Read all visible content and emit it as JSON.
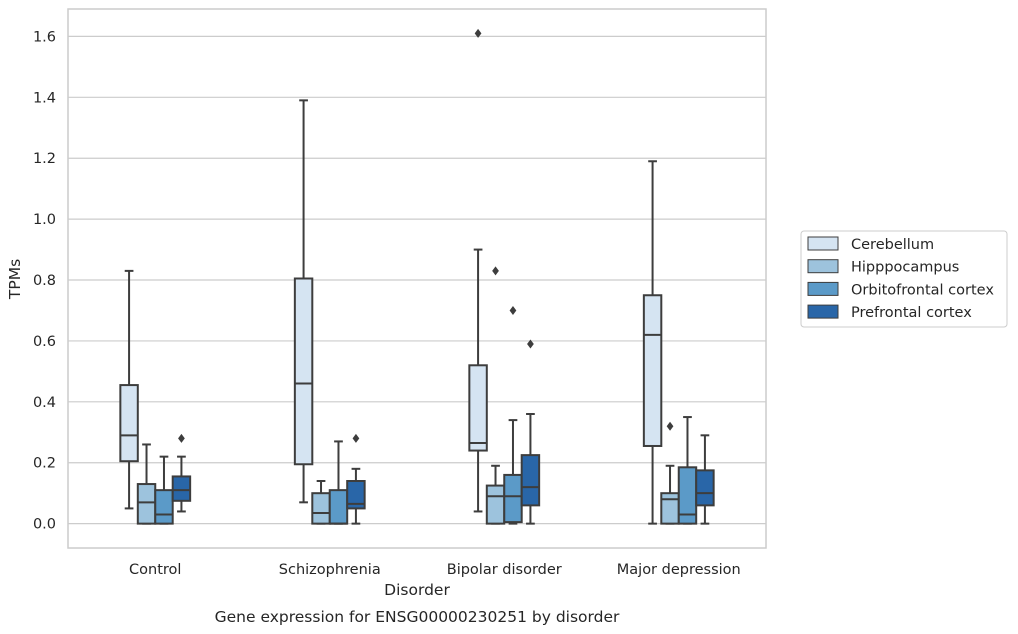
{
  "chart_data": {
    "type": "box",
    "title": "",
    "caption": "Gene expression for ENSG00000230251 by disorder",
    "xlabel": "Disorder",
    "ylabel": "TPMs",
    "ylim": [
      -0.08,
      1.69
    ],
    "yticks": [
      0.0,
      0.2,
      0.4,
      0.6,
      0.8,
      1.0,
      1.2,
      1.4,
      1.6
    ],
    "ytick_labels": [
      "0.0",
      "0.2",
      "0.4",
      "0.6",
      "0.8",
      "1.0",
      "1.2",
      "1.4",
      "1.6"
    ],
    "grid": "horizontal",
    "legend_position": "right",
    "categories": [
      "Control",
      "Schizophrenia",
      "Bipolar disorder",
      "Major depression"
    ],
    "series": [
      {
        "name": "Cerebellum",
        "color": "#d5e4f2",
        "boxes": [
          {
            "whisker_low": 0.05,
            "q1": 0.205,
            "median": 0.29,
            "q3": 0.455,
            "whisker_high": 0.83,
            "outliers": []
          },
          {
            "whisker_low": 0.07,
            "q1": 0.195,
            "median": 0.46,
            "q3": 0.805,
            "whisker_high": 1.39,
            "outliers": []
          },
          {
            "whisker_low": 0.04,
            "q1": 0.24,
            "median": 0.265,
            "q3": 0.52,
            "whisker_high": 0.9,
            "outliers": [
              1.61
            ]
          },
          {
            "whisker_low": 0.0,
            "q1": 0.255,
            "median": 0.62,
            "q3": 0.75,
            "whisker_high": 1.19,
            "outliers": []
          }
        ]
      },
      {
        "name": "Hipppocampus",
        "color": "#9dc3dd",
        "boxes": [
          {
            "whisker_low": 0.0,
            "q1": 0.0,
            "median": 0.07,
            "q3": 0.13,
            "whisker_high": 0.26,
            "outliers": []
          },
          {
            "whisker_low": 0.0,
            "q1": 0.0,
            "median": 0.035,
            "q3": 0.1,
            "whisker_high": 0.14,
            "outliers": []
          },
          {
            "whisker_low": 0.0,
            "q1": 0.0,
            "median": 0.09,
            "q3": 0.125,
            "whisker_high": 0.19,
            "outliers": [
              0.83
            ]
          },
          {
            "whisker_low": 0.0,
            "q1": 0.0,
            "median": 0.08,
            "q3": 0.1,
            "whisker_high": 0.19,
            "outliers": [
              0.32
            ]
          }
        ]
      },
      {
        "name": "Orbitofrontal cortex",
        "color": "#5b9ac8",
        "boxes": [
          {
            "whisker_low": 0.0,
            "q1": 0.0,
            "median": 0.03,
            "q3": 0.11,
            "whisker_high": 0.22,
            "outliers": []
          },
          {
            "whisker_low": 0.0,
            "q1": 0.0,
            "median": 0.0,
            "q3": 0.11,
            "whisker_high": 0.27,
            "outliers": []
          },
          {
            "whisker_low": 0.0,
            "q1": 0.005,
            "median": 0.09,
            "q3": 0.16,
            "whisker_high": 0.34,
            "outliers": [
              0.7
            ]
          },
          {
            "whisker_low": 0.0,
            "q1": 0.0,
            "median": 0.03,
            "q3": 0.185,
            "whisker_high": 0.35,
            "outliers": []
          }
        ]
      },
      {
        "name": "Prefrontal cortex",
        "color": "#2966a8",
        "boxes": [
          {
            "whisker_low": 0.04,
            "q1": 0.075,
            "median": 0.11,
            "q3": 0.155,
            "whisker_high": 0.22,
            "outliers": [
              0.28
            ]
          },
          {
            "whisker_low": 0.0,
            "q1": 0.05,
            "median": 0.065,
            "q3": 0.14,
            "whisker_high": 0.18,
            "outliers": [
              0.28
            ]
          },
          {
            "whisker_low": 0.0,
            "q1": 0.06,
            "median": 0.12,
            "q3": 0.225,
            "whisker_high": 0.36,
            "outliers": [
              0.59
            ]
          },
          {
            "whisker_low": 0.0,
            "q1": 0.06,
            "median": 0.1,
            "q3": 0.175,
            "whisker_high": 0.29,
            "outliers": []
          }
        ]
      }
    ]
  }
}
